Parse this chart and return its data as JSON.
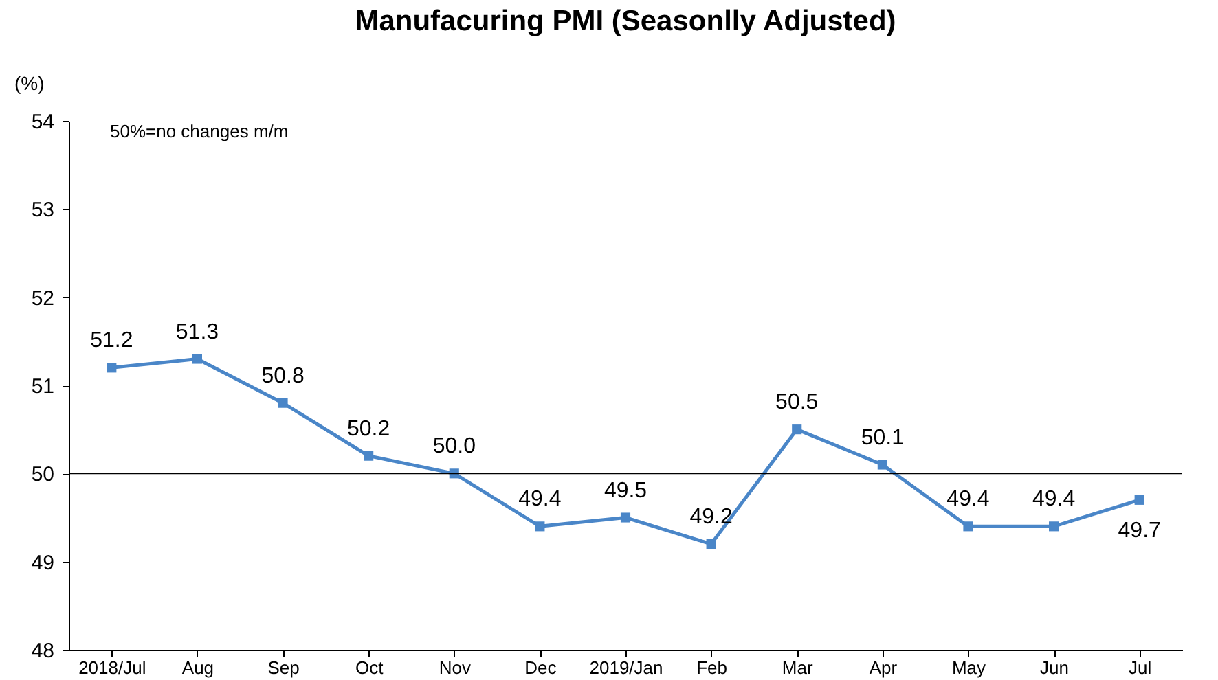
{
  "chart_data": {
    "type": "line",
    "title": "Manufacuring PMI (Seasonlly Adjusted)",
    "ylabel": "(%)",
    "categories": [
      "2018/Jul",
      "Aug",
      "Sep",
      "Oct",
      "Nov",
      "Dec",
      "2019/Jan",
      "Feb",
      "Mar",
      "Apr",
      "May",
      "Jun",
      "Jul"
    ],
    "series": [
      {
        "color": "#4a86c8",
        "values": [
          51.2,
          51.3,
          50.8,
          50.2,
          50.0,
          49.4,
          49.5,
          49.2,
          50.5,
          50.1,
          49.4,
          49.4,
          49.7
        ],
        "value_labels": [
          "51.2",
          "51.3",
          "50.8",
          "50.2",
          "50.0",
          "49.4",
          "49.5",
          "49.2",
          "50.5",
          "50.1",
          "49.4",
          "49.4",
          "49.7"
        ]
      }
    ],
    "ylim": [
      48,
      54
    ],
    "yticks": [
      48,
      49,
      50,
      51,
      52,
      53,
      54
    ],
    "ref_lines": [
      {
        "axis": "y",
        "value": 50,
        "color": "#000000"
      }
    ],
    "annotations": [
      "50%=no changes m/m"
    ],
    "marker": "square",
    "line_style": "solid",
    "grid": false
  }
}
